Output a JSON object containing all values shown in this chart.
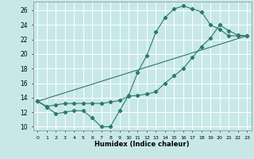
{
  "xlabel": "Humidex (Indice chaleur)",
  "ylabel": "",
  "bg_color": "#c8e8e8",
  "grid_color": "#ffffff",
  "line_color": "#2a7a6a",
  "xlim": [
    -0.5,
    23.5
  ],
  "ylim": [
    9.5,
    27.2
  ],
  "ytick_values": [
    10,
    12,
    14,
    16,
    18,
    20,
    22,
    24,
    26
  ],
  "line1_x": [
    0,
    1,
    2,
    3,
    4,
    5,
    6,
    7,
    8,
    9,
    10,
    11,
    12,
    13,
    14,
    15,
    16,
    17,
    18,
    19,
    20,
    21,
    22,
    23
  ],
  "line1_y": [
    13.5,
    12.7,
    11.8,
    12.0,
    12.2,
    12.2,
    11.2,
    10.0,
    10.0,
    12.2,
    14.3,
    17.5,
    19.8,
    23.0,
    25.0,
    26.2,
    26.6,
    26.2,
    25.8,
    24.0,
    23.4,
    22.5,
    22.5,
    22.5
  ],
  "line2_x": [
    0,
    1,
    2,
    3,
    4,
    5,
    6,
    7,
    8,
    9,
    10,
    11,
    12,
    13,
    14,
    15,
    16,
    17,
    18,
    19,
    20,
    21,
    22,
    23
  ],
  "line2_y": [
    13.5,
    12.8,
    13.0,
    13.2,
    13.2,
    13.2,
    13.2,
    13.2,
    13.4,
    13.6,
    14.2,
    14.3,
    14.5,
    14.8,
    16.0,
    17.0,
    18.0,
    19.5,
    21.0,
    22.2,
    24.0,
    23.2,
    22.6,
    22.5
  ],
  "line3_x": [
    0,
    23
  ],
  "line3_y": [
    13.5,
    22.5
  ]
}
